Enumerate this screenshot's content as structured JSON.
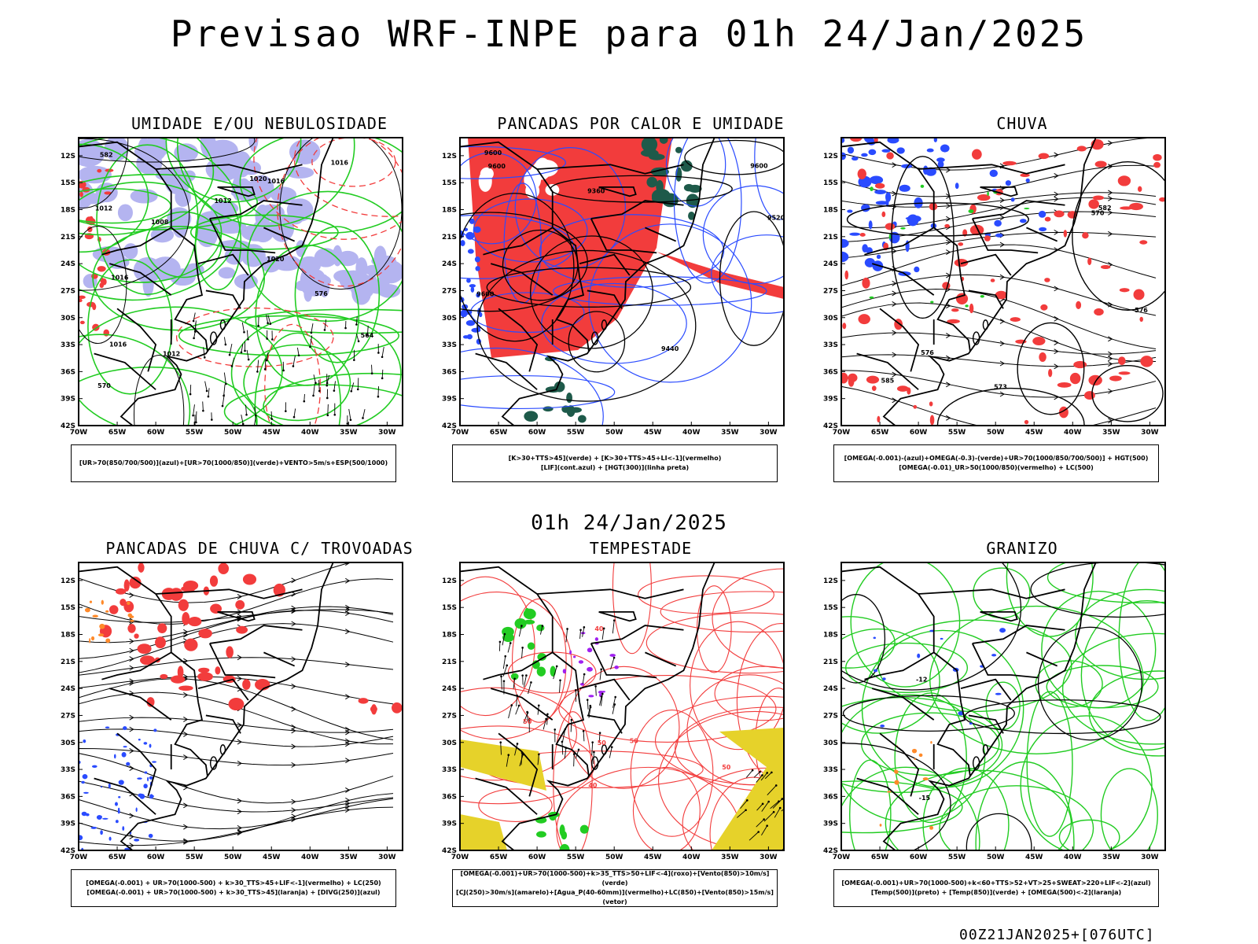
{
  "header": {
    "title": "Previsao WRF-INPE  para 01h 24/Jan/2025"
  },
  "mid_label": "01h 24/Jan/2025",
  "footer": {
    "stamp": "00Z21JAN2025+[076UTC]"
  },
  "axes": {
    "lat_labels": [
      "12S",
      "15S",
      "18S",
      "21S",
      "24S",
      "27S",
      "30S",
      "33S",
      "36S",
      "39S",
      "42S"
    ],
    "lon_labels": [
      "70W",
      "65W",
      "60W",
      "55W",
      "50W",
      "45W",
      "40W",
      "35W",
      "30W"
    ]
  },
  "colors": {
    "red": "#f23c3c",
    "blue": "#2a4bff",
    "green": "#22cc22",
    "lavender": "#b4b4f0",
    "darkgreen": "#1e5a4a",
    "yellow": "#e6d22a",
    "purple": "#a020f0",
    "orange": "#ff8a2a",
    "black": "#000000"
  },
  "panels": [
    {
      "title": "UMIDADE E/OU NEBULOSIDADE",
      "legend": [
        "[UR>70(850/700/500)](azul)+[UR>70(1000/850)](verde)+VENTO>5m/s+ESP(500/1000)"
      ],
      "contour_labels": [
        "1012",
        "1012",
        "1016",
        "1012",
        "1008",
        "1016",
        "1016",
        "1020",
        "1016",
        "1020",
        "576",
        "570",
        "564",
        "582"
      ]
    },
    {
      "title": "PANCADAS POR CALOR E UMIDADE",
      "legend": [
        "[K>30+TTS>45](verde) + [K>30+TTS>45+LI<-1](vermelho)",
        "[LIF](cont.azul) + [HGT(300)](linha preta)"
      ],
      "contour_labels": [
        "9600",
        "9600",
        "9600",
        "9600",
        "9520",
        "9440",
        "9360"
      ]
    },
    {
      "title": "CHUVA",
      "legend": [
        "[OMEGA(-0.001)-(azul)+OMEGA(-0.3)-(verde)+UR>70(1000/850/700/500)] + HGT(500)",
        "[OMEGA(-0.01)_UR>50(1000/850)(vermelho) + LC(500)"
      ],
      "contour_labels": [
        "585",
        "582",
        "576",
        "573",
        "570",
        "576"
      ]
    },
    {
      "title": "PANCADAS DE CHUVA C/ TROVOADAS",
      "legend": [
        "[OMEGA(-0.001) + UR>70(1000-500) + k>30_TTS>45+LIF<-1](vermelho) + LC(250)",
        "[OMEGA(-0.001) + UR>70(1000-500) + k>30_TTS>45](laranja) + [DIVG(250)](azul)"
      ],
      "contour_labels": []
    },
    {
      "title": "TEMPESTADE",
      "legend": [
        "[OMEGA(-0.001)+UR>70(1000-500)+k>35_TTS>50+LIF<-4](roxo)+[Vento(850)>10m/s](verde)",
        "[CJ(250)>30m/s](amarelo)+[Agua_P(40-60mm)](vermelho)+LC(850)+[Vento(850)>15m/s](vetor)"
      ],
      "contour_labels": [
        "50",
        "50",
        "50",
        "50",
        "40",
        "40"
      ]
    },
    {
      "title": "GRANIZO",
      "legend": [
        "[OMEGA(-0.001)+UR>70(1000-500)+k<60+TTS>52+VT>25+SWEAT>220+LIF<-2](azul)",
        "[Temp(500)](preto) + [Temp(850)](verde) + [OMEGA(500)<-2](laranja)"
      ],
      "contour_labels": [
        "-12",
        "-15"
      ]
    }
  ],
  "chart_data": [
    {
      "type": "heatmap",
      "title": "UMIDADE E/OU NEBULOSIDADE",
      "xlabel": "",
      "ylabel": "",
      "xlim": [
        -70,
        -28
      ],
      "ylim": [
        -42,
        -10
      ],
      "fields": [
        "UR>70(850/700/500) azul",
        "UR>70(1000/850) verde",
        "VENTO>5m/s",
        "ESP(500/1000)"
      ]
    },
    {
      "type": "heatmap",
      "title": "PANCADAS POR CALOR E UMIDADE",
      "xlim": [
        -70,
        -28
      ],
      "ylim": [
        -42,
        -10
      ],
      "fields": [
        "K>30+TTS>45 verde",
        "K>30+TTS>45+LI<-1 vermelho",
        "LIF",
        "HGT(300)"
      ]
    },
    {
      "type": "heatmap",
      "title": "CHUVA",
      "xlim": [
        -70,
        -28
      ],
      "ylim": [
        -42,
        -10
      ],
      "fields": [
        "OMEGA(-0.001)",
        "OMEGA(-0.3)",
        "UR>70",
        "HGT(500)",
        "LC(500)"
      ]
    },
    {
      "type": "heatmap",
      "title": "PANCADAS DE CHUVA C/ TROVOADAS",
      "xlim": [
        -70,
        -28
      ],
      "ylim": [
        -42,
        -10
      ],
      "fields": [
        "vermelho",
        "laranja",
        "DIVG(250) azul",
        "LC(250)"
      ]
    },
    {
      "type": "heatmap",
      "title": "TEMPESTADE",
      "xlim": [
        -70,
        -28
      ],
      "ylim": [
        -42,
        -10
      ],
      "fields": [
        "roxo",
        "Vento(850)>10m/s verde",
        "CJ(250)>30m/s amarelo",
        "Agua_P(40-60mm) vermelho",
        "LC(850)",
        "Vento(850)>15m/s vetor"
      ]
    },
    {
      "type": "heatmap",
      "title": "GRANIZO",
      "xlim": [
        -70,
        -28
      ],
      "ylim": [
        -42,
        -10
      ],
      "fields": [
        "azul",
        "Temp(500) preto",
        "Temp(850) verde",
        "OMEGA(500)<-2 laranja"
      ]
    }
  ]
}
